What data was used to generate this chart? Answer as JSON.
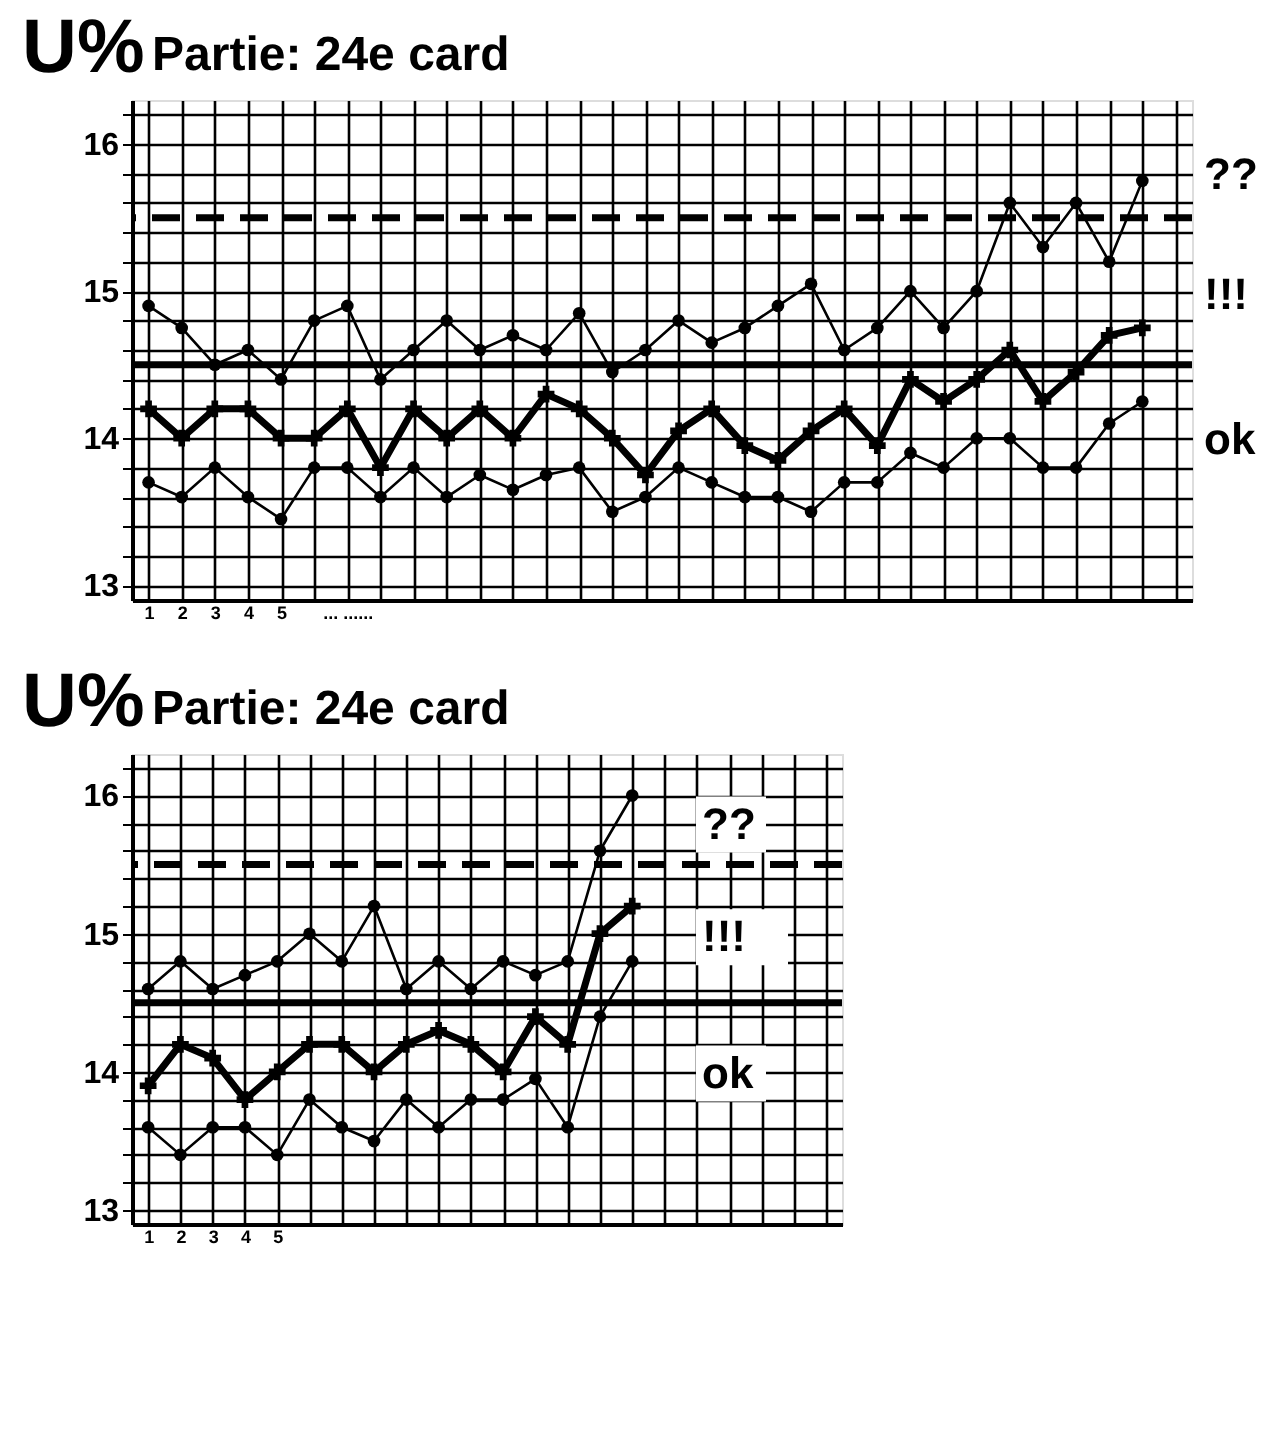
{
  "chart_data": [
    {
      "type": "line",
      "title": "Partie: 24e card",
      "ylabel": "U%",
      "categories": [
        "1",
        "2",
        "3",
        "4",
        "5",
        null,
        "... ......",
        null,
        null,
        null,
        null,
        null,
        null,
        null,
        null,
        null,
        null,
        null,
        null,
        null,
        null,
        null,
        null,
        null,
        null,
        null,
        null,
        null,
        null,
        null,
        null,
        null
      ],
      "series": [
        {
          "color": "#000000",
          "marker": "circle",
          "values": [
            14.9,
            14.75,
            14.5,
            14.6,
            14.4,
            14.8,
            14.9,
            14.4,
            14.6,
            14.8,
            14.6,
            14.7,
            14.6,
            14.85,
            14.45,
            14.6,
            14.8,
            14.65,
            14.75,
            14.9,
            15.05,
            14.6,
            14.75,
            15.0,
            14.75,
            15.0,
            15.6,
            15.3,
            15.6,
            15.2,
            15.75,
            null
          ]
        },
        {
          "color": "#000000",
          "marker": "cross",
          "values": [
            14.2,
            14.0,
            14.2,
            14.2,
            14.0,
            14.0,
            14.2,
            13.8,
            14.2,
            14.0,
            14.2,
            14.0,
            14.3,
            14.2,
            14.0,
            13.75,
            14.05,
            14.2,
            13.95,
            13.85,
            14.05,
            14.2,
            13.95,
            14.4,
            14.25,
            14.4,
            14.6,
            14.25,
            14.45,
            14.7,
            14.75,
            null
          ]
        },
        {
          "color": "#000000",
          "marker": "circle",
          "values": [
            13.7,
            13.6,
            13.8,
            13.6,
            13.45,
            13.8,
            13.8,
            13.6,
            13.8,
            13.6,
            13.75,
            13.65,
            13.75,
            13.8,
            13.5,
            13.6,
            13.8,
            13.7,
            13.6,
            13.6,
            13.5,
            13.7,
            13.7,
            13.9,
            13.8,
            14.0,
            14.0,
            13.8,
            13.8,
            14.1,
            14.25,
            null
          ]
        }
      ],
      "ylim": [
        12.9,
        16.3
      ],
      "yticks": [
        13,
        {
          "value": 13.2,
          "label": null
        },
        {
          "value": 13.4,
          "label": null
        },
        {
          "value": 13.6,
          "label": null
        },
        {
          "value": 13.8,
          "label": null
        },
        14,
        {
          "value": 14.2,
          "label": null
        },
        {
          "value": 14.4,
          "label": null
        },
        {
          "value": 14.6,
          "label": null
        },
        {
          "value": 14.8,
          "label": null
        },
        15,
        {
          "value": 15.2,
          "label": null
        },
        {
          "value": 15.4,
          "label": null
        },
        {
          "value": 15.6,
          "label": null
        },
        {
          "value": 15.8,
          "label": null
        },
        16,
        {
          "value": 16.2,
          "label": null
        }
      ],
      "grid": true,
      "ref_lines": [
        {
          "axis": "y",
          "value": 15.5,
          "line_style": "dashed",
          "color": "#000000"
        },
        {
          "axis": "y",
          "value": 14.5,
          "line_style": "solid",
          "color": "#000000"
        }
      ],
      "annotations": [
        "??",
        "!!!",
        "ok"
      ]
    },
    {
      "type": "line",
      "title": "Partie: 24e card",
      "ylabel": "U%",
      "categories": [
        "1",
        "2",
        "3",
        "4",
        "5",
        null,
        null,
        null,
        null,
        null,
        null,
        null,
        null,
        null,
        null,
        null,
        null,
        null,
        null,
        null,
        null,
        null
      ],
      "series": [
        {
          "color": "#000000",
          "marker": "circle",
          "values": [
            14.6,
            14.8,
            14.6,
            14.7,
            14.8,
            15.0,
            14.8,
            15.2,
            14.6,
            14.8,
            14.6,
            14.8,
            14.7,
            14.8,
            15.6,
            16.0,
            null,
            null,
            null,
            null,
            null,
            null
          ]
        },
        {
          "color": "#000000",
          "marker": "cross",
          "values": [
            13.9,
            14.2,
            14.1,
            13.8,
            14.0,
            14.2,
            14.2,
            14.0,
            14.2,
            14.3,
            14.2,
            14.0,
            14.4,
            14.2,
            15.0,
            15.2,
            null,
            null,
            null,
            null,
            null,
            null
          ]
        },
        {
          "color": "#000000",
          "marker": "circle",
          "values": [
            13.6,
            13.4,
            13.6,
            13.6,
            13.4,
            13.8,
            13.6,
            13.5,
            13.8,
            13.6,
            13.8,
            13.8,
            13.95,
            13.6,
            14.4,
            14.8,
            null,
            null,
            null,
            null,
            null,
            null
          ]
        }
      ],
      "ylim": [
        12.9,
        16.3
      ],
      "yticks": [
        13,
        {
          "value": 13.2,
          "label": null
        },
        {
          "value": 13.4,
          "label": null
        },
        {
          "value": 13.6,
          "label": null
        },
        {
          "value": 13.8,
          "label": null
        },
        14,
        {
          "value": 14.2,
          "label": null
        },
        {
          "value": 14.4,
          "label": null
        },
        {
          "value": 14.6,
          "label": null
        },
        {
          "value": 14.8,
          "label": null
        },
        15,
        {
          "value": 15.2,
          "label": null
        },
        {
          "value": 15.4,
          "label": null
        },
        {
          "value": 15.6,
          "label": null
        },
        {
          "value": 15.8,
          "label": null
        },
        16,
        {
          "value": 16.2,
          "label": null
        }
      ],
      "grid": true,
      "ref_lines": [
        {
          "axis": "y",
          "value": 15.5,
          "line_style": "dashed",
          "color": "#000000"
        },
        {
          "axis": "y",
          "value": 14.5,
          "line_style": "solid",
          "color": "#000000"
        }
      ],
      "annotations": [
        "??",
        "!!!",
        "ok"
      ]
    }
  ]
}
